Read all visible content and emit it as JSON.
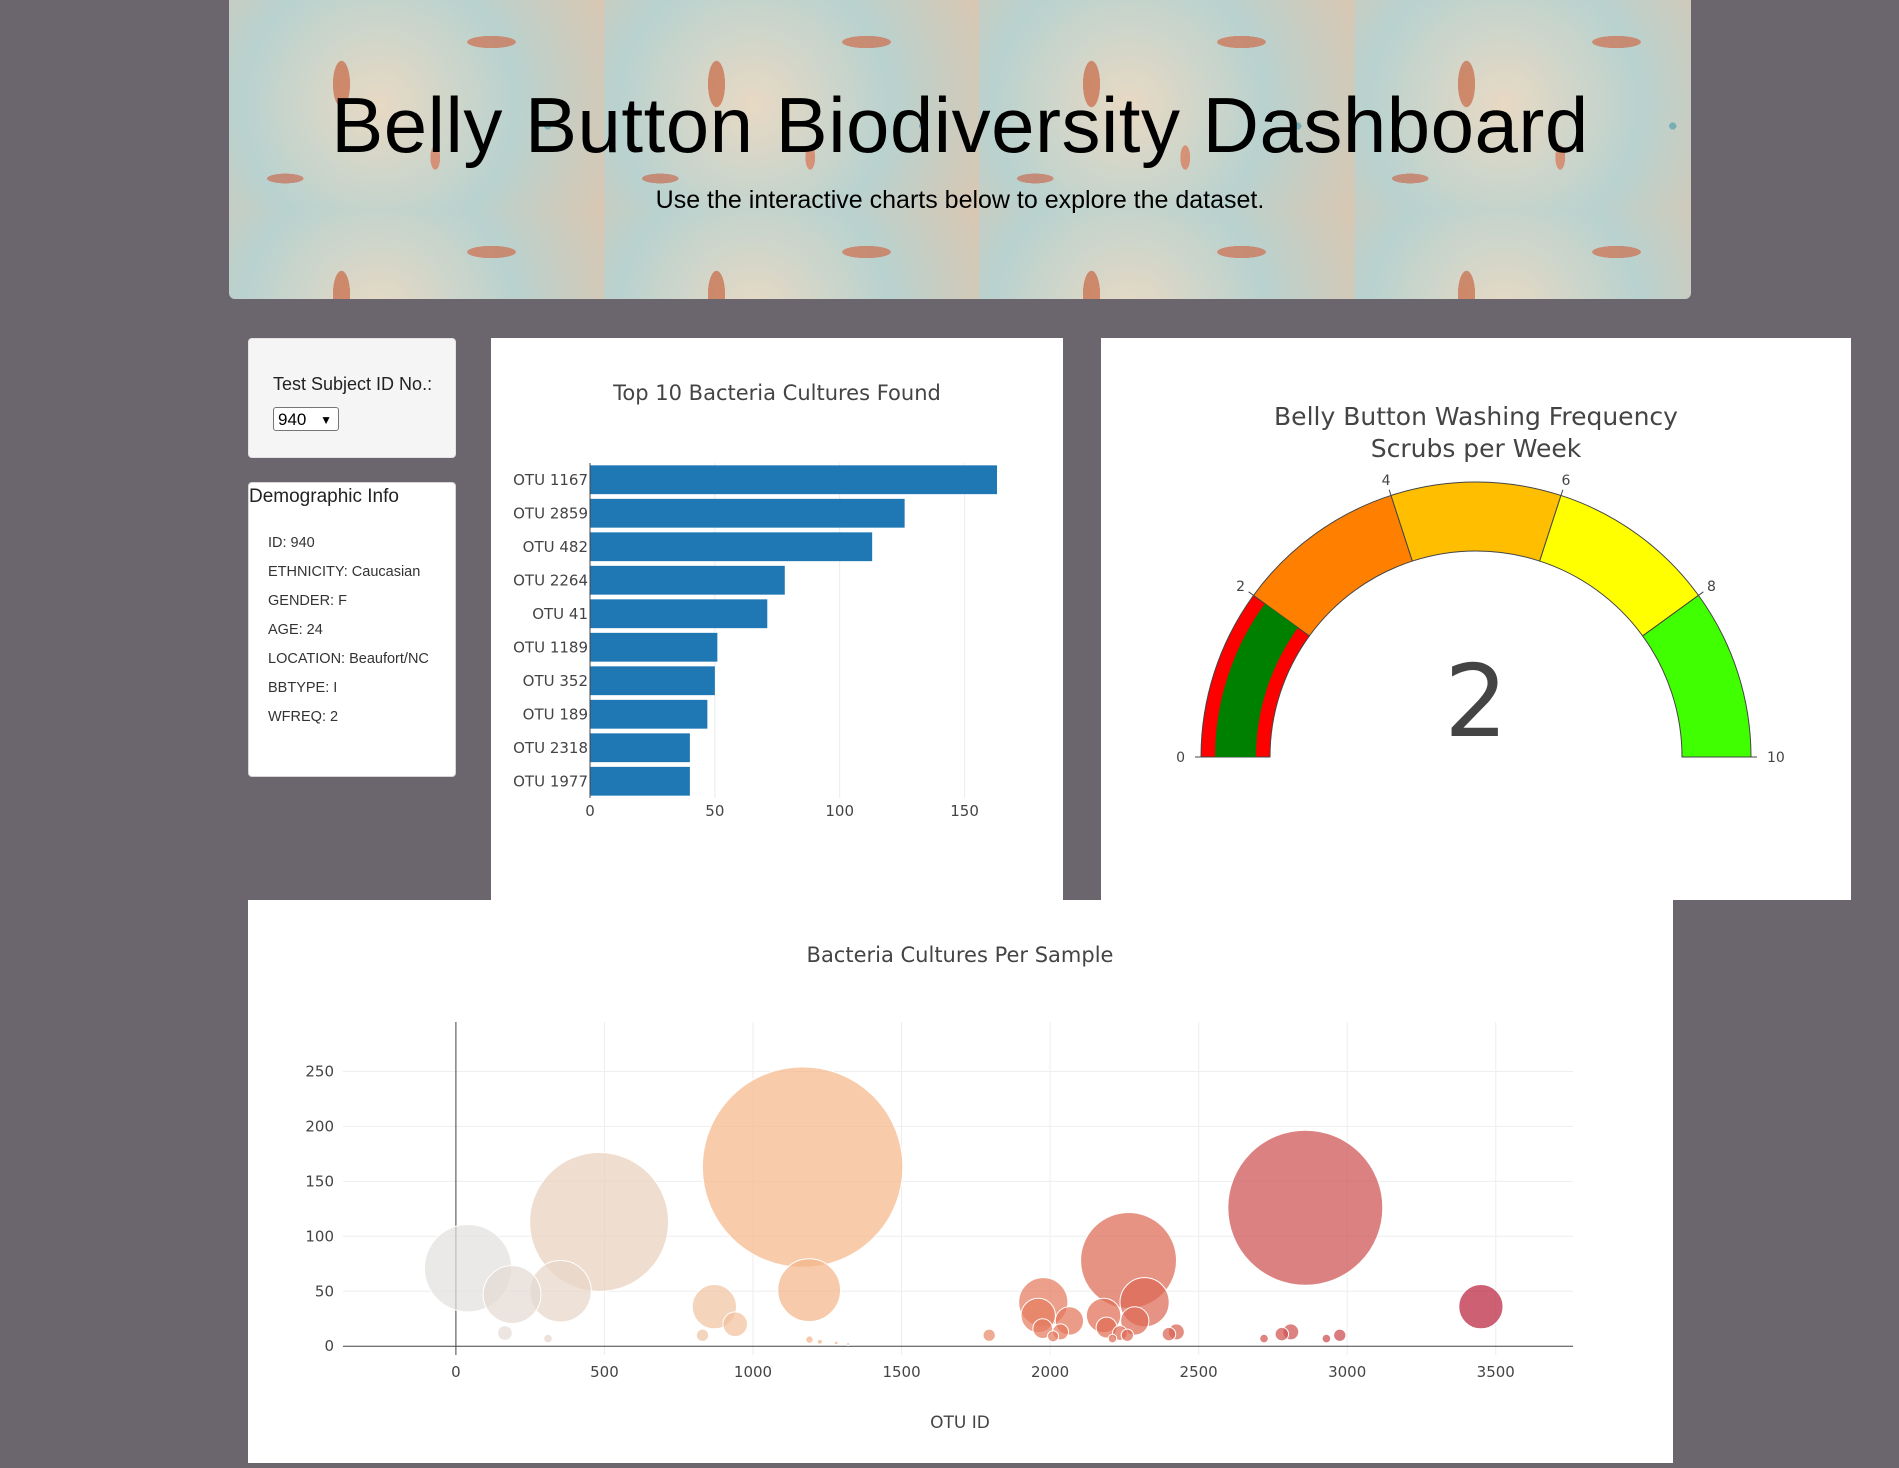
{
  "header": {
    "title": "Belly Button Biodiversity Dashboard",
    "subtitle": "Use the interactive charts below to explore the dataset."
  },
  "selector": {
    "label": "Test Subject ID No.:",
    "selected": "940"
  },
  "demographics": {
    "title": "Demographic Info",
    "items": [
      "ID: 940",
      "ETHNICITY: Caucasian",
      "GENDER: F",
      "AGE: 24",
      "LOCATION: Beaufort/NC",
      "BBTYPE: I",
      "WFREQ: 2"
    ]
  },
  "chart_data": [
    {
      "type": "bar",
      "orientation": "horizontal",
      "title": "Top 10 Bacteria Cultures Found",
      "categories": [
        "OTU 1167",
        "OTU 2859",
        "OTU 482",
        "OTU 2264",
        "OTU 41",
        "OTU 1189",
        "OTU 352",
        "OTU 189",
        "OTU 2318",
        "OTU 1977"
      ],
      "values": [
        163,
        126,
        113,
        78,
        71,
        51,
        50,
        47,
        40,
        40
      ],
      "xticks": [
        0,
        50,
        100,
        150
      ],
      "xlim": [
        0,
        171
      ],
      "color": "#1f77b4",
      "grid": true
    },
    {
      "type": "gauge",
      "title": "Belly Button Washing Frequency",
      "subtitle": "Scrubs per Week",
      "value": 2,
      "range": [
        0,
        10
      ],
      "ticks": [
        0,
        2,
        4,
        6,
        8,
        10
      ],
      "steps": [
        {
          "from": 0,
          "to": 2,
          "color": "#ff0000"
        },
        {
          "from": 2,
          "to": 4,
          "color": "#ff8000"
        },
        {
          "from": 4,
          "to": 6,
          "color": "#ffbf00"
        },
        {
          "from": 6,
          "to": 8,
          "color": "#ffff00"
        },
        {
          "from": 8,
          "to": 10,
          "color": "#40ff00"
        }
      ],
      "bar_color": "#008000"
    },
    {
      "type": "scatter",
      "subtype": "bubble",
      "title": "Bacteria Cultures Per Sample",
      "xlabel": "OTU ID",
      "xticks": [
        0,
        500,
        1000,
        1500,
        2000,
        2500,
        3000,
        3500
      ],
      "yticks": [
        0,
        50,
        100,
        150,
        200,
        250
      ],
      "xlim": [
        -380,
        3760
      ],
      "ylim": [
        -8,
        295
      ],
      "colorscale": "Reds-like (OTU ID mapped light grey → peach → dark red)",
      "grid": true,
      "points": [
        {
          "x": 41,
          "y": 71
        },
        {
          "x": 189,
          "y": 47
        },
        {
          "x": 352,
          "y": 50
        },
        {
          "x": 482,
          "y": 113
        },
        {
          "x": 1167,
          "y": 163
        },
        {
          "x": 1189,
          "y": 51
        },
        {
          "x": 870,
          "y": 36
        },
        {
          "x": 940,
          "y": 20
        },
        {
          "x": 165,
          "y": 12
        },
        {
          "x": 310,
          "y": 7
        },
        {
          "x": 830,
          "y": 10
        },
        {
          "x": 1190,
          "y": 6
        },
        {
          "x": 1225,
          "y": 4
        },
        {
          "x": 1280,
          "y": 3
        },
        {
          "x": 1320,
          "y": 2
        },
        {
          "x": 1795,
          "y": 10
        },
        {
          "x": 1977,
          "y": 40
        },
        {
          "x": 1960,
          "y": 28
        },
        {
          "x": 1975,
          "y": 16
        },
        {
          "x": 2010,
          "y": 9
        },
        {
          "x": 2035,
          "y": 13
        },
        {
          "x": 2065,
          "y": 23
        },
        {
          "x": 2180,
          "y": 28
        },
        {
          "x": 2190,
          "y": 17
        },
        {
          "x": 2210,
          "y": 7
        },
        {
          "x": 2235,
          "y": 12
        },
        {
          "x": 2260,
          "y": 10
        },
        {
          "x": 2264,
          "y": 78
        },
        {
          "x": 2285,
          "y": 23
        },
        {
          "x": 2318,
          "y": 40
        },
        {
          "x": 2400,
          "y": 11
        },
        {
          "x": 2425,
          "y": 13
        },
        {
          "x": 2720,
          "y": 7
        },
        {
          "x": 2780,
          "y": 11
        },
        {
          "x": 2810,
          "y": 13
        },
        {
          "x": 2859,
          "y": 126
        },
        {
          "x": 2930,
          "y": 7
        },
        {
          "x": 2975,
          "y": 10
        },
        {
          "x": 3450,
          "y": 36
        }
      ]
    }
  ]
}
